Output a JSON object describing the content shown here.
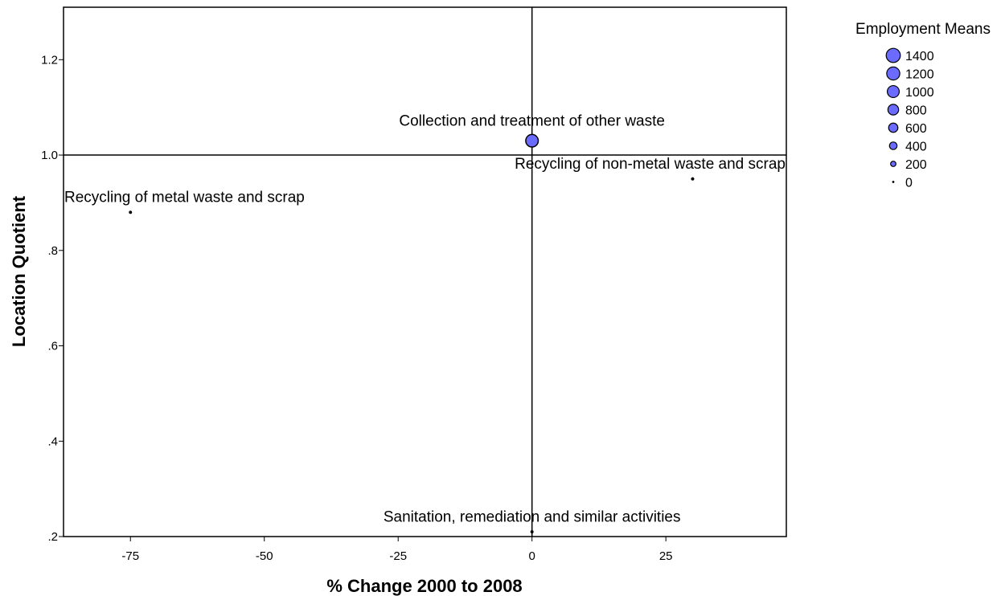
{
  "chart_data": {
    "type": "scatter",
    "xlabel": "% Change 2000 to 2008",
    "ylabel": "Location Quotient",
    "xlim": [
      -87.5,
      47.5
    ],
    "ylim": [
      0.2,
      1.31
    ],
    "x_ticks": [
      -75,
      -50,
      -25,
      0,
      25
    ],
    "x_tick_labels": [
      "-75",
      "-50",
      "-25",
      "0",
      "25"
    ],
    "y_ticks": [
      0.2,
      0.4,
      0.6,
      0.8,
      1.0,
      1.2
    ],
    "y_tick_labels": [
      ".2",
      ".4",
      ".6",
      ".8",
      "1.0",
      "1.2"
    ],
    "reference_lines": {
      "x": 0,
      "y": 1.0
    },
    "grid": false,
    "point_color": "#6b6bff",
    "points": [
      {
        "label": "Collection and treatment of other waste",
        "x": 0,
        "y": 1.03,
        "size": 1100
      },
      {
        "label": "Recycling of non-metal waste and scrap",
        "x": 30,
        "y": 0.95,
        "size": 40
      },
      {
        "label": "Recycling of metal waste and scrap",
        "x": -75,
        "y": 0.88,
        "size": 40
      },
      {
        "label": "Sanitation, remediation and similar activities",
        "x": 0,
        "y": 0.21,
        "size": 20
      }
    ],
    "legend": {
      "title": "Employment Means",
      "placement": "top-right",
      "entries": [
        {
          "label": "1400",
          "value": 1400
        },
        {
          "label": "1200",
          "value": 1200
        },
        {
          "label": "1000",
          "value": 1000
        },
        {
          "label": "800",
          "value": 800
        },
        {
          "label": "600",
          "value": 600
        },
        {
          "label": "400",
          "value": 400
        },
        {
          "label": "200",
          "value": 200
        },
        {
          "label": "0",
          "value": 0
        }
      ]
    }
  }
}
